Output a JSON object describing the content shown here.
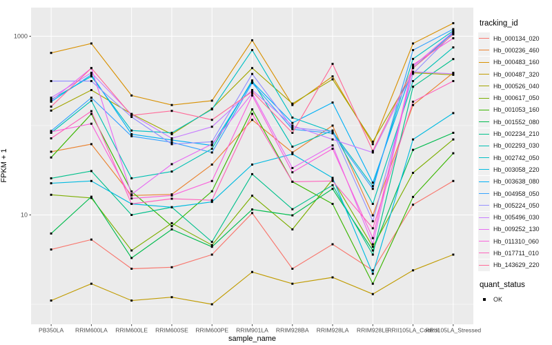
{
  "figure": {
    "background": "#FFFFFF",
    "panel_bg": "#EBEBEB",
    "grid_color": "#FFFFFF",
    "tick_color": "#333333",
    "tick_label_color": "#4D4D4D",
    "axis_title_color": "#000000",
    "point_color": "#000000",
    "legend_key_bg": "#F0F0F0"
  },
  "chart_data": {
    "type": "line",
    "title": "",
    "xlabel": "sample_name",
    "ylabel": "FPKM + 1",
    "y_scale": "log10",
    "y_ticks": [
      1000,
      10
    ],
    "y_tick_labels": [
      "1000",
      "10"
    ],
    "y_minor_gridlines": [
      100,
      1
    ],
    "ylim": [
      0.6,
      2075
    ],
    "grid": true,
    "legend_position": "right",
    "legend_title": "tracking_id",
    "legend2_title": "quant_status",
    "legend2_items": [
      {
        "label": "OK",
        "marker": "black-square"
      }
    ],
    "point_marker": "black-square",
    "categories": [
      "PB350LA",
      "RRIM600LA",
      "RRIM600LE",
      "RRIM600SE",
      "RRIM600PE",
      "RRIM901LA",
      "RRIM928BA",
      "RRIM928LA",
      "RRIM928LE",
      "RRII105LA_Control",
      "RRII105LA_Stressed"
    ],
    "series": [
      {
        "name": "Hb_000134_020",
        "color": "#F8766D",
        "values": [
          4.1,
          5.3,
          2.5,
          2.6,
          3.6,
          10.5,
          2.5,
          4.7,
          2.4,
          13,
          24
        ]
      },
      {
        "name": "Hb_000236_460",
        "color": "#EA8331",
        "values": [
          51,
          62,
          16.5,
          17,
          36.6,
          116,
          50,
          100,
          9.9,
          170,
          390
        ]
      },
      {
        "name": "Hb_000483_160",
        "color": "#D89000",
        "values": [
          650,
          830,
          217,
          170,
          190,
          900,
          170,
          355,
          62,
          830,
          1400
        ]
      },
      {
        "name": "Hb_000487_320",
        "color": "#C09B00",
        "values": [
          1.1,
          1.7,
          1.1,
          1.2,
          1.0,
          2.3,
          1.7,
          2.0,
          1.3,
          2.4,
          3.6
        ]
      },
      {
        "name": "Hb_000526_040",
        "color": "#A3A500",
        "values": [
          147,
          250,
          135,
          80,
          155,
          440,
          176,
          330,
          66,
          390,
          370
        ]
      },
      {
        "name": "Hb_000617_050",
        "color": "#7CAE00",
        "values": [
          16.8,
          15.5,
          4.0,
          8.1,
          4.6,
          16.4,
          6.9,
          25,
          4.4,
          29.6,
          70
        ]
      },
      {
        "name": "Hb_001053_160",
        "color": "#39B600",
        "values": [
          44,
          135,
          18.3,
          7.5,
          18.4,
          152,
          23.5,
          13.3,
          1.7,
          15.9,
          49
        ]
      },
      {
        "name": "Hb_001552_080",
        "color": "#00BB4E",
        "values": [
          6.2,
          16,
          3.3,
          6.9,
          4.4,
          11.5,
          9.9,
          19.6,
          4.0,
          53.5,
          83
        ]
      },
      {
        "name": "Hb_002234_210",
        "color": "#00C08B",
        "values": [
          25.7,
          31,
          10,
          12.2,
          5.0,
          28.6,
          11.6,
          21.5,
          3.6,
          272,
          555
        ]
      },
      {
        "name": "Hb_002293_030",
        "color": "#00C0B4",
        "values": [
          83,
          190,
          25.7,
          30.6,
          55,
          320,
          58,
          88,
          13.3,
          315,
          750
        ]
      },
      {
        "name": "Hb_002742_050",
        "color": "#00BFC4",
        "values": [
          195,
          355,
          88,
          83,
          152,
          700,
          123,
          85,
          21,
          557,
          1150
        ]
      },
      {
        "name": "Hb_003058_220",
        "color": "#00BAE0",
        "values": [
          22.6,
          24,
          13.3,
          12.2,
          14,
          36.6,
          48,
          26,
          2.2,
          70,
          138
        ]
      },
      {
        "name": "Hb_003638_080",
        "color": "#00B0F6",
        "values": [
          185,
          370,
          80,
          69,
          60,
          310,
          107,
          181,
          23,
          440,
          1100
        ]
      },
      {
        "name": "Hb_004958_050",
        "color": "#35A2FF",
        "values": [
          87,
          205,
          76,
          65,
          50,
          300,
          91,
          82,
          19.6,
          700,
          1200
        ]
      },
      {
        "name": "Hb_005224_050",
        "color": "#9590FF",
        "values": [
          315,
          315,
          125,
          62,
          66,
          378,
          95,
          86,
          8.5,
          380,
          1080
        ]
      },
      {
        "name": "Hb_005496_030",
        "color": "#C77CFF",
        "values": [
          205,
          390,
          133,
          72,
          97,
          250,
          100,
          70,
          50,
          400,
          380
        ]
      },
      {
        "name": "Hb_009252_130",
        "color": "#E76BF3",
        "values": [
          190,
          440,
          17,
          37,
          62,
          230,
          33.5,
          60,
          4.7,
          460,
          1120
        ]
      },
      {
        "name": "Hb_011310_060",
        "color": "#FA62DB",
        "values": [
          85,
          105,
          15.3,
          16.5,
          24,
          217,
          30,
          55,
          5.5,
          480,
          950
        ]
      },
      {
        "name": "Hb_017711_010",
        "color": "#FF62BC",
        "values": [
          72,
          145,
          13.3,
          15.2,
          14.6,
          135,
          23.5,
          24,
          7.1,
          185,
          315
        ]
      },
      {
        "name": "Hb_143629_220",
        "color": "#FF6A98",
        "values": [
          163,
          440,
          130,
          146,
          116,
          240,
          83,
          490,
          52,
          440,
          1050
        ]
      }
    ]
  }
}
